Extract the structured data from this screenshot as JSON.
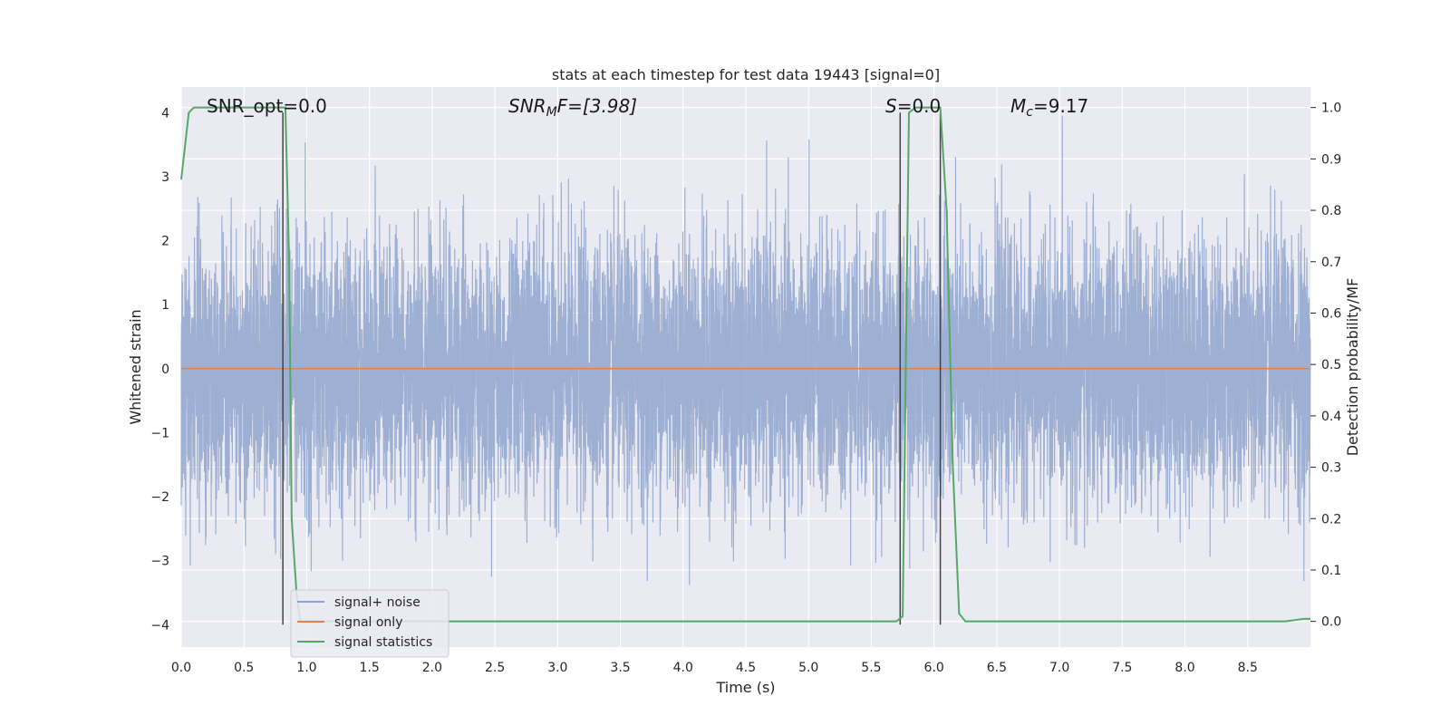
{
  "chart_data": {
    "type": "line",
    "title": "stats at each timestep for test data 19443 [signal=0]",
    "xlabel": "Time (s)",
    "ylabel": "Whitened strain",
    "y2label": "Detection probability/MF",
    "xlim": [
      0,
      9.0
    ],
    "ylim": [
      -4.35,
      4.4
    ],
    "y2lim": [
      -0.05,
      1.04
    ],
    "xticks": [
      0.0,
      0.5,
      1.0,
      1.5,
      2.0,
      2.5,
      3.0,
      3.5,
      4.0,
      4.5,
      5.0,
      5.5,
      6.0,
      6.5,
      7.0,
      7.5,
      8.0,
      8.5
    ],
    "xtick_labels": [
      "0.0",
      "0.5",
      "1.0",
      "1.5",
      "2.0",
      "2.5",
      "3.0",
      "3.5",
      "4.0",
      "4.5",
      "5.0",
      "5.5",
      "6.0",
      "6.5",
      "7.0",
      "7.5",
      "8.0",
      "8.5"
    ],
    "yticks": [
      4,
      3,
      2,
      1,
      0,
      -1,
      -2,
      -3,
      -4
    ],
    "ytick_labels": [
      "4",
      "3",
      "2",
      "1",
      "0",
      "−1",
      "−2",
      "−3",
      "−4"
    ],
    "y2ticks": [
      1.0,
      0.9,
      0.8,
      0.7,
      0.6,
      0.5,
      0.4,
      0.3,
      0.2,
      0.1,
      0.0
    ],
    "y2tick_labels": [
      "1.0",
      "0.9",
      "0.8",
      "0.7",
      "0.6",
      "0.5",
      "0.4",
      "0.3",
      "0.2",
      "0.1",
      "0.0"
    ],
    "grid": true,
    "legend_position": "lower-left",
    "annotations": {
      "snr_opt": "SNR_opt=0.0",
      "snr_mf_main": "SNR",
      "snr_mf_sub": "M",
      "snr_mf_rest": "F=[3.98]",
      "s_main": "S",
      "s_rest": "=0.0",
      "mc_main": "M",
      "mc_sub": "c",
      "mc_rest": "=9.17"
    },
    "vertical_lines_x": [
      0.81,
      5.73,
      6.05
    ],
    "vertical_lines_range": [
      -4.0,
      4.0
    ],
    "series": [
      {
        "name": "signal+ noise",
        "color": "#8fa4cd",
        "axis": "left",
        "description_samples": 9000
      },
      {
        "name": "signal only",
        "color": "#dd8452",
        "axis": "left",
        "x": [
          0.0,
          9.0
        ],
        "y": [
          0.0,
          0.0
        ]
      },
      {
        "name": "signal statistics",
        "color": "#55a868",
        "axis": "right",
        "x": [
          0.0,
          0.06,
          0.1,
          0.2,
          0.3,
          0.5,
          0.7,
          0.8,
          0.83,
          0.86,
          0.88,
          0.92,
          0.95,
          1.0,
          1.5,
          2.0,
          3.0,
          4.0,
          5.0,
          5.5,
          5.7,
          5.75,
          5.8,
          5.85,
          5.9,
          6.0,
          6.05,
          6.1,
          6.15,
          6.2,
          6.25,
          6.5,
          7.0,
          8.0,
          8.8,
          8.95,
          9.0
        ],
        "y": [
          0.86,
          0.99,
          1.0,
          1.0,
          1.0,
          1.0,
          1.0,
          1.0,
          1.0,
          0.7,
          0.2,
          0.05,
          0.0,
          0.0,
          0.0,
          0.0,
          0.0,
          0.0,
          0.0,
          0.0,
          0.0,
          0.01,
          0.99,
          1.0,
          1.0,
          1.0,
          1.0,
          0.8,
          0.3,
          0.015,
          0.0,
          0.0,
          0.0,
          0.0,
          0.0,
          0.005,
          0.005
        ]
      }
    ]
  }
}
